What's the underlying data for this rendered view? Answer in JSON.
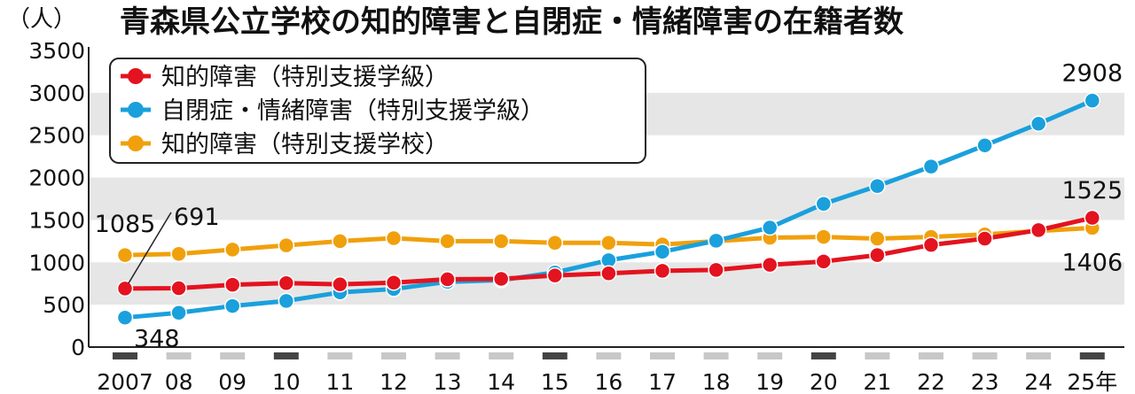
{
  "chart_data": {
    "type": "line",
    "title": "青森県公立学校の知的障害と自閉症・情緒障害の在籍者数",
    "ylabel": "（人）",
    "ylim": [
      0,
      3500
    ],
    "yticks": [
      0,
      500,
      1000,
      1500,
      2000,
      2500,
      3000,
      3500
    ],
    "grid": "horizontal bands",
    "legend_position": "top-left",
    "x": [
      "2007",
      "08",
      "09",
      "10",
      "11",
      "12",
      "13",
      "14",
      "15",
      "16",
      "17",
      "18",
      "19",
      "20",
      "21",
      "22",
      "23",
      "24",
      "25年"
    ],
    "series": [
      {
        "name": "知的障害（特別支援学級）",
        "color": "#e3131f",
        "values": [
          691,
          695,
          735,
          755,
          740,
          760,
          800,
          805,
          845,
          870,
          900,
          910,
          970,
          1010,
          1085,
          1205,
          1280,
          1380,
          1525
        ]
      },
      {
        "name": "自閉症・情緒障害（特別支援学級）",
        "color": "#1aa0dc",
        "values": [
          348,
          405,
          485,
          545,
          645,
          685,
          770,
          790,
          880,
          1025,
          1125,
          1255,
          1410,
          1690,
          1900,
          2130,
          2380,
          2635,
          2908
        ]
      },
      {
        "name": "知的障害（特別支援学校）",
        "color": "#f0a00c",
        "values": [
          1085,
          1100,
          1150,
          1200,
          1250,
          1285,
          1250,
          1250,
          1230,
          1230,
          1210,
          1250,
          1290,
          1300,
          1280,
          1300,
          1330,
          1370,
          1406
        ]
      }
    ],
    "annotations": [
      {
        "text": "1085",
        "series": 2,
        "index": 0
      },
      {
        "text": "691",
        "series": 0,
        "index": 0
      },
      {
        "text": "348",
        "series": 1,
        "index": 0
      },
      {
        "text": "2908",
        "series": 1,
        "index": 18
      },
      {
        "text": "1525",
        "series": 0,
        "index": 18
      },
      {
        "text": "1406",
        "series": 2,
        "index": 18
      }
    ],
    "highlighted_years": [
      "2007",
      "10",
      "15",
      "20",
      "25年"
    ]
  }
}
